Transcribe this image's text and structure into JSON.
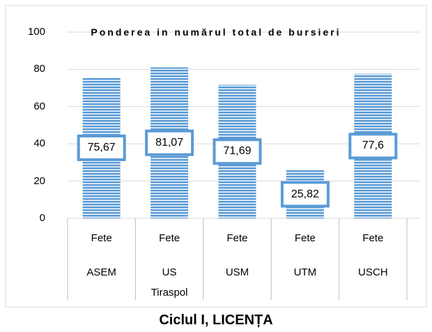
{
  "chart_data": {
    "type": "bar",
    "title": "Ponderea in numărul total de bursieri",
    "x_label": "Ciclul I, LICENȚA",
    "categories": [
      [
        "Fete",
        "ASEM"
      ],
      [
        "Fete",
        "US Tiraspol"
      ],
      [
        "Fete",
        "USM"
      ],
      [
        "Fete",
        "UTM"
      ],
      [
        "Fete",
        "USCH"
      ]
    ],
    "values": [
      75.67,
      81.07,
      71.69,
      25.82,
      77.6
    ],
    "value_labels": [
      "75,67",
      "81,07",
      "71,69",
      "25,82",
      "77,6"
    ],
    "color": "#5b9bd5",
    "ylim": [
      0,
      100
    ],
    "yticks": [
      0,
      20,
      40,
      60,
      80,
      100
    ],
    "grid": true
  }
}
